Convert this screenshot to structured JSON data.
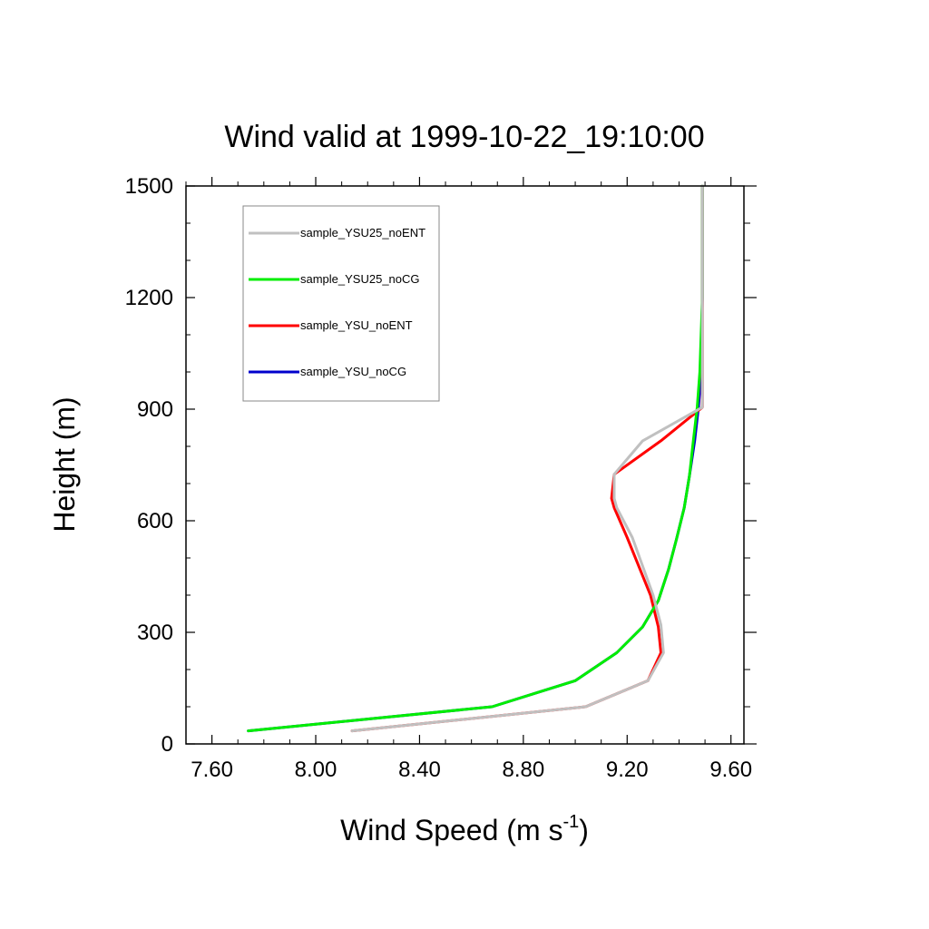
{
  "chart_data": {
    "type": "line",
    "title": "Wind valid at 1999-10-22_19:10:00",
    "xlabel": "Wind Speed (m s",
    "xlabel_superscript": "-1",
    "xlabel_suffix": ")",
    "ylabel": "Height (m)",
    "xlim": [
      7.5,
      9.65
    ],
    "ylim": [
      0,
      1500
    ],
    "xticks": [
      7.6,
      8.0,
      8.4,
      8.8,
      9.2,
      9.6
    ],
    "xtick_labels": [
      "7.60",
      "8.00",
      "8.40",
      "8.80",
      "9.20",
      "9.60"
    ],
    "yticks": [
      0,
      300,
      600,
      900,
      1200,
      1500
    ],
    "ytick_labels": [
      "0",
      "300",
      "600",
      "900",
      "1200",
      "1500"
    ],
    "grid": false,
    "legend_position": "top-left",
    "series": [
      {
        "name": "sample_YSU_noCG",
        "color": "#0000cc",
        "x": [
          7.74,
          8.68,
          9.0,
          9.16,
          9.26,
          9.32,
          9.36,
          9.39,
          9.42,
          9.44,
          9.46,
          9.475,
          9.485,
          9.49,
          9.49
        ],
        "y": [
          35,
          100,
          170,
          245,
          315,
          385,
          470,
          550,
          635,
          720,
          815,
          905,
          1000,
          1200,
          1500
        ]
      },
      {
        "name": "sample_YSU_noENT",
        "color": "#ff0000",
        "x": [
          8.14,
          9.04,
          9.28,
          9.33,
          9.32,
          9.29,
          9.2,
          9.15,
          9.14,
          9.15,
          9.33,
          9.49,
          9.49,
          9.49
        ],
        "y": [
          35,
          100,
          170,
          245,
          315,
          400,
          555,
          635,
          660,
          725,
          815,
          905,
          1200,
          1500
        ]
      },
      {
        "name": "sample_YSU25_noCG",
        "color": "#00ee00",
        "x": [
          7.74,
          8.68,
          9.0,
          9.16,
          9.26,
          9.32,
          9.36,
          9.39,
          9.42,
          9.44,
          9.455,
          9.47,
          9.48,
          9.49,
          9.49
        ],
        "y": [
          35,
          100,
          170,
          245,
          315,
          385,
          470,
          550,
          635,
          720,
          815,
          905,
          1000,
          1200,
          1500
        ]
      },
      {
        "name": "sample_YSU25_noENT",
        "color": "#c0c0c0",
        "x": [
          8.14,
          9.04,
          9.28,
          9.34,
          9.33,
          9.3,
          9.22,
          9.16,
          9.15,
          9.15,
          9.26,
          9.49,
          9.49,
          9.49
        ],
        "y": [
          35,
          100,
          170,
          245,
          320,
          400,
          555,
          635,
          660,
          725,
          815,
          905,
          1200,
          1500
        ]
      }
    ],
    "legend_order": [
      "sample_YSU25_noENT",
      "sample_YSU25_noCG",
      "sample_YSU_noENT",
      "sample_YSU_noCG"
    ]
  }
}
